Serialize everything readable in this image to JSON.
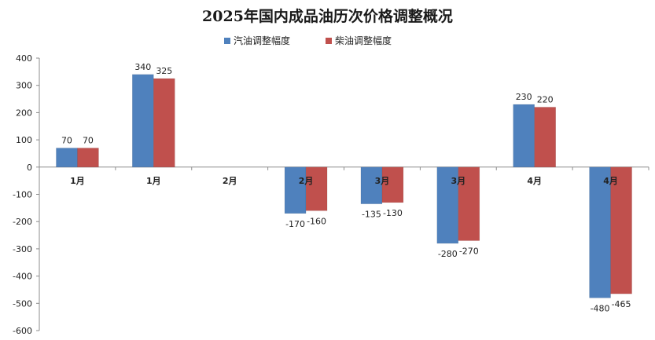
{
  "chart_data": {
    "type": "bar",
    "title": "2025年国内成品油历次价格调整概况",
    "categories": [
      "1月",
      "1月",
      "2月",
      "2月",
      "3月",
      "3月",
      "4月",
      "4月"
    ],
    "series": [
      {
        "name": "汽油调整幅度",
        "color": "#4F81BD",
        "values": [
          70,
          340,
          null,
          -170,
          -135,
          -280,
          230,
          -480
        ]
      },
      {
        "name": "柴油调整幅度",
        "color": "#C0504D",
        "values": [
          70,
          325,
          null,
          -160,
          -130,
          -270,
          220,
          -465
        ]
      }
    ],
    "ylim": [
      -600,
      400
    ],
    "yticks": [
      400,
      300,
      200,
      100,
      0,
      -100,
      -200,
      -300,
      -400,
      -500,
      -600
    ],
    "grid": false,
    "legend_position": "top-center",
    "xlabel": "",
    "ylabel": ""
  }
}
